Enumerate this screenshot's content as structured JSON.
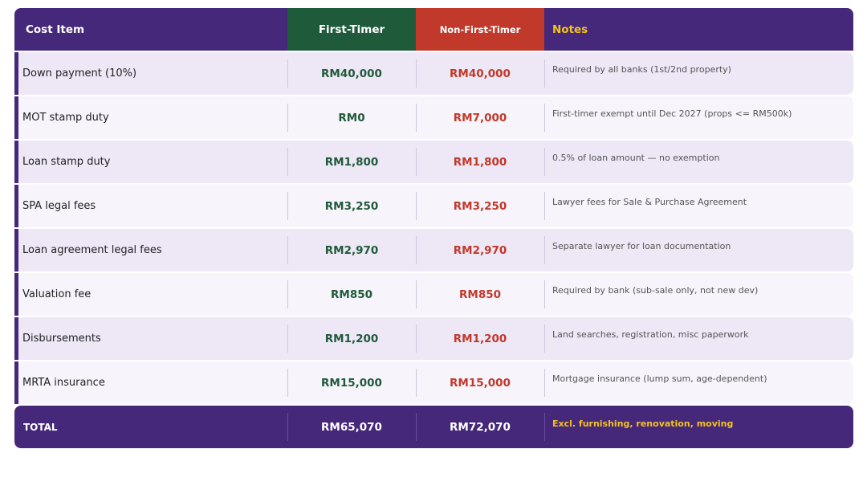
{
  "header": {
    "cost_item": "Cost Item",
    "first_timer": "First-Timer",
    "non_first_timer": "Non-First-Timer",
    "notes": "Notes"
  },
  "rows": [
    {
      "item": "Down payment (10%)",
      "first": "RM40,000",
      "non_first": "RM40,000",
      "note": "Required by all banks (1st/2nd property)"
    },
    {
      "item": "MOT stamp duty",
      "first": "RM0",
      "non_first": "RM7,000",
      "note": "First-timer exempt until Dec 2027 (props <= RM500k)"
    },
    {
      "item": "Loan stamp duty",
      "first": "RM1,800",
      "non_first": "RM1,800",
      "note": "0.5% of loan amount — no exemption"
    },
    {
      "item": "SPA legal fees",
      "first": "RM3,250",
      "non_first": "RM3,250",
      "note": "Lawyer fees for Sale & Purchase Agreement"
    },
    {
      "item": "Loan agreement legal fees",
      "first": "RM2,970",
      "non_first": "RM2,970",
      "note": "Separate lawyer for loan documentation"
    },
    {
      "item": "Valuation fee",
      "first": "RM850",
      "non_first": "RM850",
      "note": "Required by bank (sub-sale only, not new dev)"
    },
    {
      "item": "Disbursements",
      "first": "RM1,200",
      "non_first": "RM1,200",
      "note": "Land searches, registration, misc paperwork"
    },
    {
      "item": "MRTA insurance",
      "first": "RM15,000",
      "non_first": "RM15,000",
      "note": "Mortgage insurance (lump sum, age-dependent)"
    }
  ],
  "total": {
    "label": "TOTAL",
    "first": "RM65,070",
    "non_first": "RM72,070",
    "note": "Excl. furnishing, renovation, moving"
  },
  "colors": {
    "header_purple": "#46287a",
    "first_timer_green": "#1f5a3a",
    "non_first_timer_red": "#c0392b",
    "notes_yellow": "#f4c21f"
  }
}
